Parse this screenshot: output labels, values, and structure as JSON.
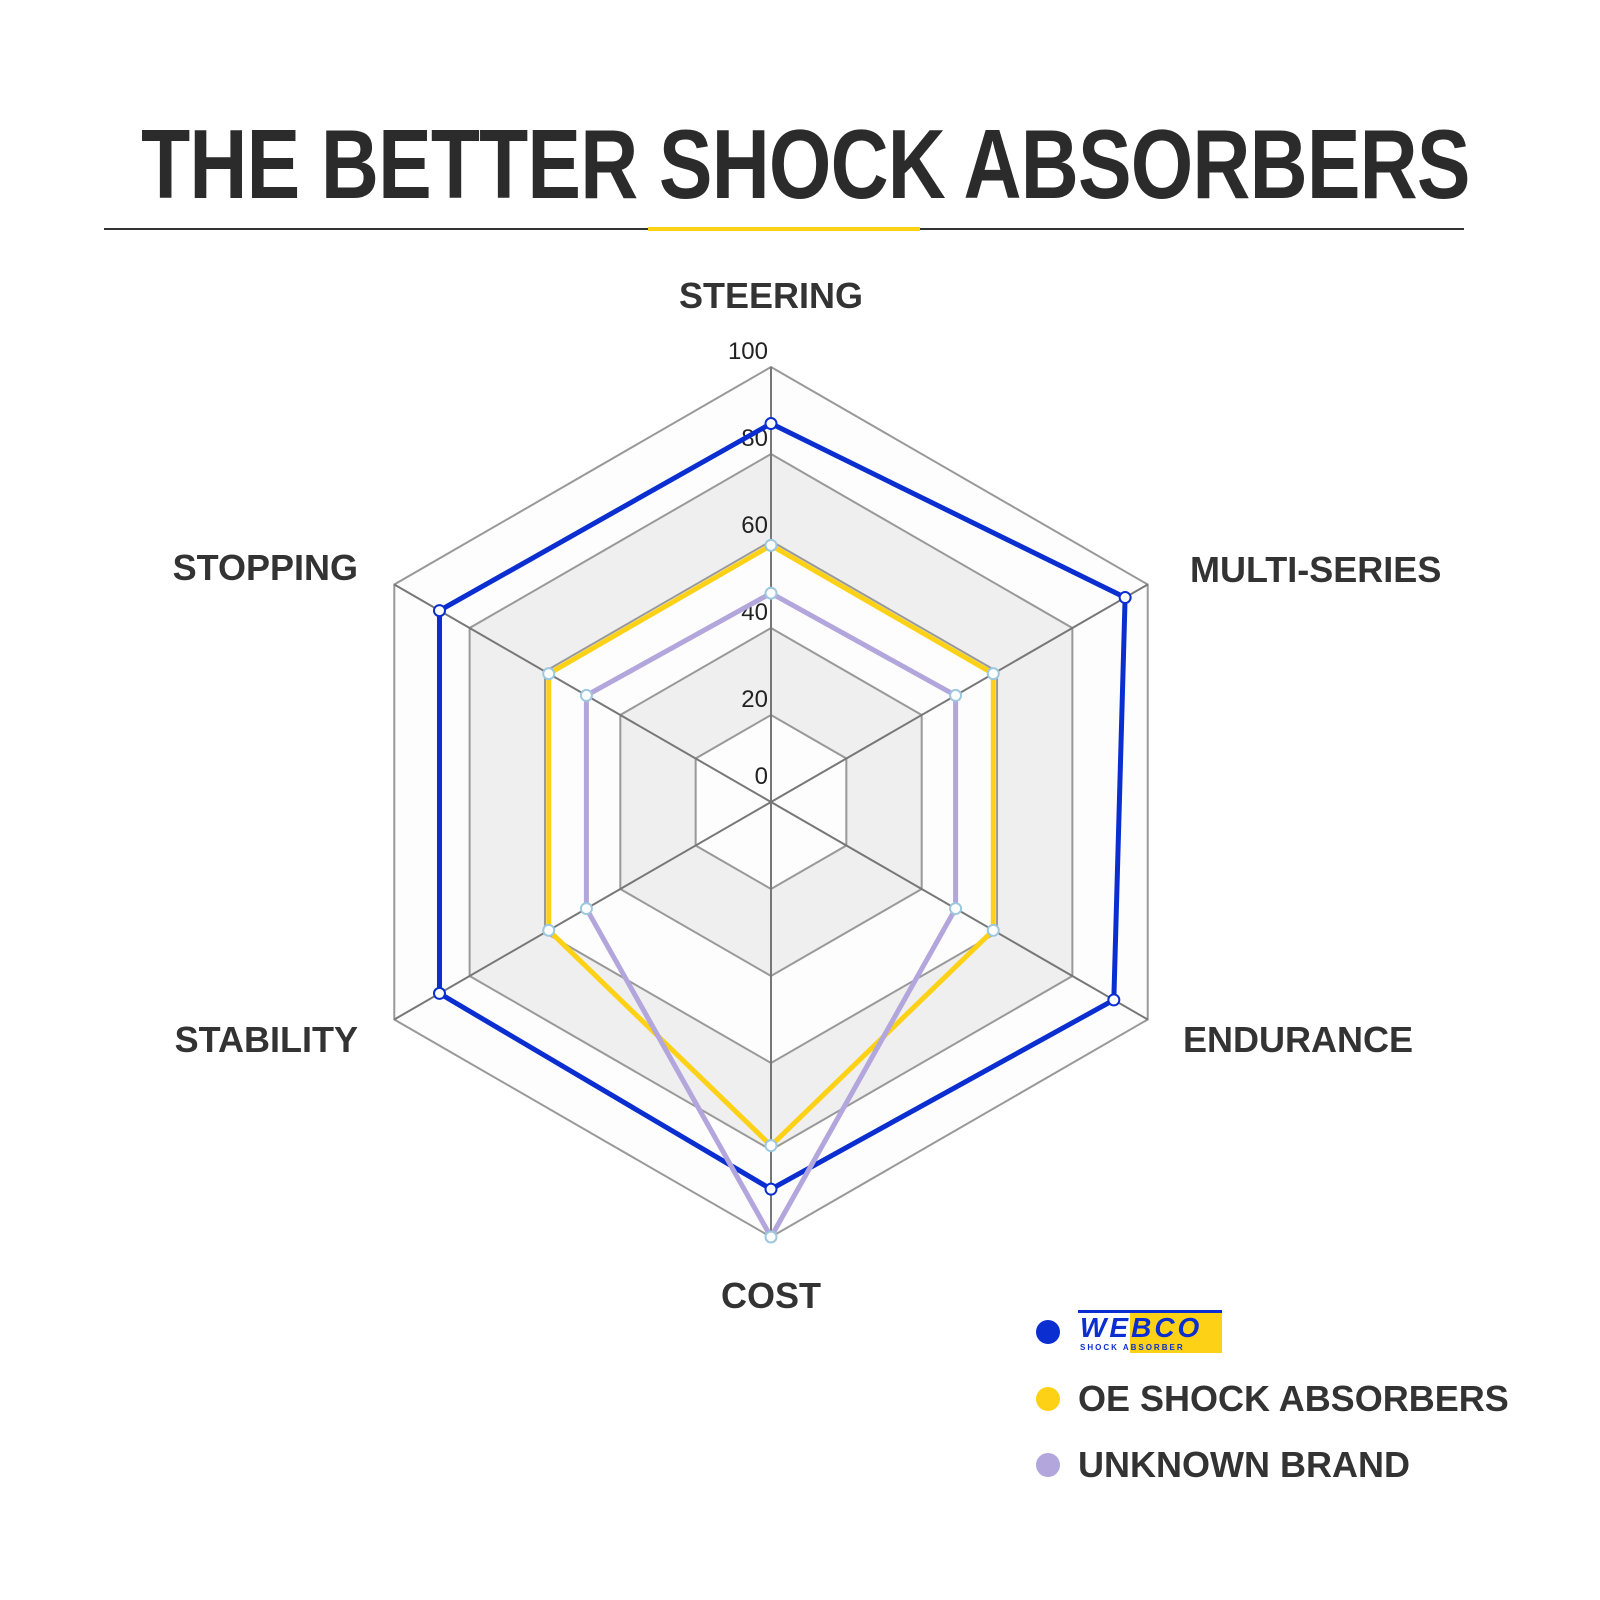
{
  "title": "THE BETTER SHOCK ABSORBERS",
  "chart_data": {
    "type": "radar",
    "axes": [
      "STEERING",
      "MULTI-SERIES",
      "ENDURANCE",
      "COST",
      "STABILITY",
      "STOPPING"
    ],
    "ticks": [
      "0",
      "20",
      "40",
      "60",
      "80",
      "100"
    ],
    "range": [
      0,
      100
    ],
    "series": [
      {
        "name": "WEBCO SHOCK ABSORBER",
        "color": "#0a2ed0",
        "values": [
          87,
          94,
          91,
          89,
          88,
          88
        ]
      },
      {
        "name": "OE SHOCK ABSORBERS",
        "color": "#fcd116",
        "values": [
          59,
          59,
          59,
          79,
          59,
          59
        ]
      },
      {
        "name": "UNKNOWN BRAND",
        "color": "#b3a6dc",
        "values": [
          48,
          49,
          49,
          100,
          49,
          49
        ]
      }
    ]
  },
  "legend": {
    "webco_logo_text": "WEBCO",
    "webco_logo_sub": "SHOCK ABSORBER",
    "oe": "OE SHOCK ABSORBERS",
    "unknown": "UNKNOWN BRAND"
  }
}
